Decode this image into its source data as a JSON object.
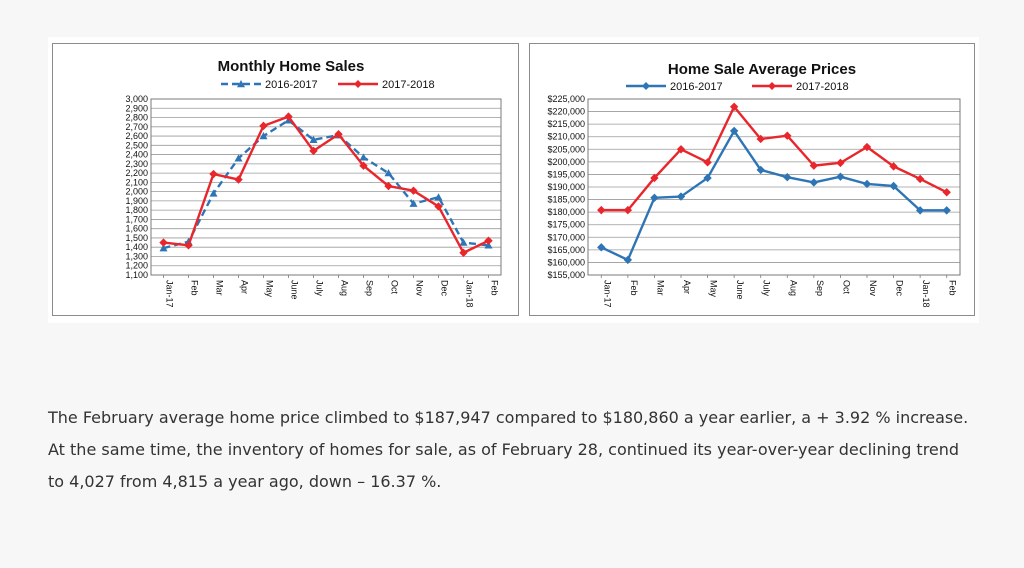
{
  "caption": "The February average home price climbed to $187,947 compared to $180,860 a year earlier, a + 3.92 % increase. At the same time, the inventory of homes for sale, as of February 28, continued its year-over-year declining trend to 4,027 from 4,815 a year ago, down – 16.37 %.",
  "chart_data": [
    {
      "type": "line",
      "title": "Monthly Home Sales",
      "categories": [
        "Jan-17",
        "Feb",
        "Mar",
        "Apr",
        "May",
        "June",
        "July",
        "Aug",
        "Sep",
        "Oct",
        "Nov",
        "Dec",
        "Jan-18",
        "Feb"
      ],
      "ylim": [
        1100,
        3000
      ],
      "ystep": 100,
      "ytick_format": "comma",
      "grid": true,
      "legend_position": "top",
      "series": [
        {
          "name": "2016-2017",
          "color": "#2e75b6",
          "dashed": true,
          "marker": "triangle",
          "values": [
            1390,
            1460,
            1980,
            2360,
            2600,
            2770,
            2560,
            2610,
            2370,
            2200,
            1870,
            1940,
            1450,
            1420
          ]
        },
        {
          "name": "2017-2018",
          "color": "#e8262b",
          "dashed": false,
          "marker": "diamond",
          "values": [
            1450,
            1420,
            2190,
            2130,
            2710,
            2810,
            2440,
            2620,
            2280,
            2060,
            2010,
            1840,
            1340,
            1470
          ]
        }
      ]
    },
    {
      "type": "line",
      "title": "Home Sale Average Prices",
      "categories": [
        "Jan-17",
        "Feb",
        "Mar",
        "Apr",
        "May",
        "June",
        "July",
        "Aug",
        "Sep",
        "Oct",
        "Nov",
        "Dec",
        "Jan-18",
        "Feb"
      ],
      "ylim": [
        155000,
        225000
      ],
      "ystep": 5000,
      "ytick_format": "currency",
      "grid": true,
      "legend_position": "top",
      "series": [
        {
          "name": "2016-2017",
          "color": "#2e75b6",
          "dashed": false,
          "marker": "diamond",
          "values": [
            166000,
            161000,
            185700,
            186200,
            193600,
            212300,
            196800,
            193900,
            191800,
            194100,
            191200,
            190400,
            180700,
            180700
          ]
        },
        {
          "name": "2017-2018",
          "color": "#e8262b",
          "dashed": false,
          "marker": "diamond",
          "values": [
            180800,
            180800,
            193600,
            205000,
            199800,
            221900,
            209100,
            210400,
            198500,
            199600,
            205900,
            198200,
            193200,
            187900
          ]
        }
      ]
    }
  ]
}
